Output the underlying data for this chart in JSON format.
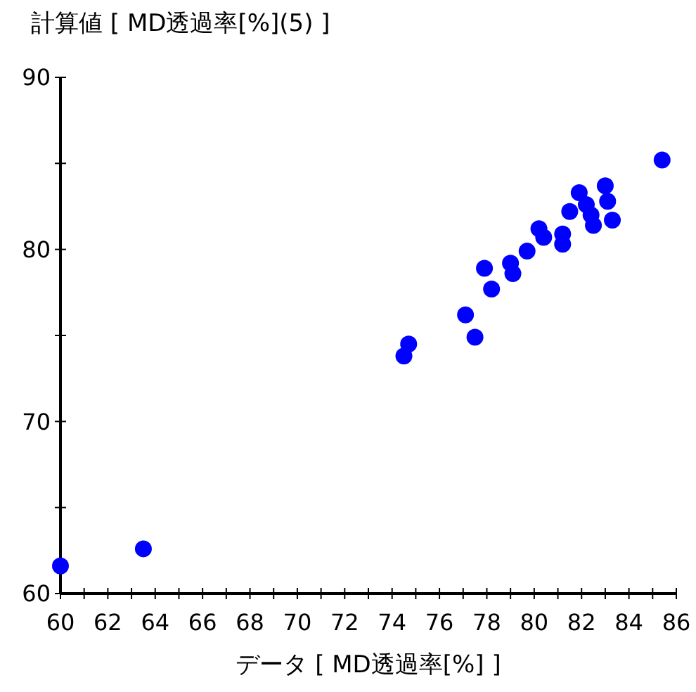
{
  "chart_data": {
    "type": "scatter",
    "xlabel": "データ [ MD透過率[%] ]",
    "ylabel": "計算値 [ MD透過率[%](5) ]",
    "xlim": [
      60,
      86
    ],
    "ylim": [
      60,
      90
    ],
    "xticks": [
      60,
      62,
      64,
      66,
      68,
      70,
      72,
      74,
      76,
      78,
      80,
      82,
      84,
      86
    ],
    "yticks": [
      60,
      {
        "value": 65,
        "label": null
      },
      70,
      {
        "value": 75,
        "label": null
      },
      80,
      {
        "value": 85,
        "label": null
      },
      90
    ],
    "marker": "circle",
    "grid": false,
    "series": [
      {
        "color": "#0000ff",
        "x": [
          60,
          63.5,
          74.5,
          74.7,
          77.1,
          77.5,
          77.9,
          78.2,
          79.0,
          79.1,
          79.7,
          80.2,
          80.4,
          81.2,
          81.2,
          81.5,
          81.9,
          82.2,
          82.4,
          82.5,
          83.0,
          83.1,
          83.3,
          85.4
        ],
        "values": [
          61.6,
          62.6,
          73.8,
          74.5,
          76.2,
          74.9,
          78.9,
          77.7,
          79.2,
          78.6,
          79.9,
          81.2,
          80.7,
          80.9,
          80.3,
          82.2,
          83.3,
          82.6,
          82.0,
          81.4,
          83.7,
          82.8,
          81.7,
          85.2
        ]
      }
    ]
  }
}
